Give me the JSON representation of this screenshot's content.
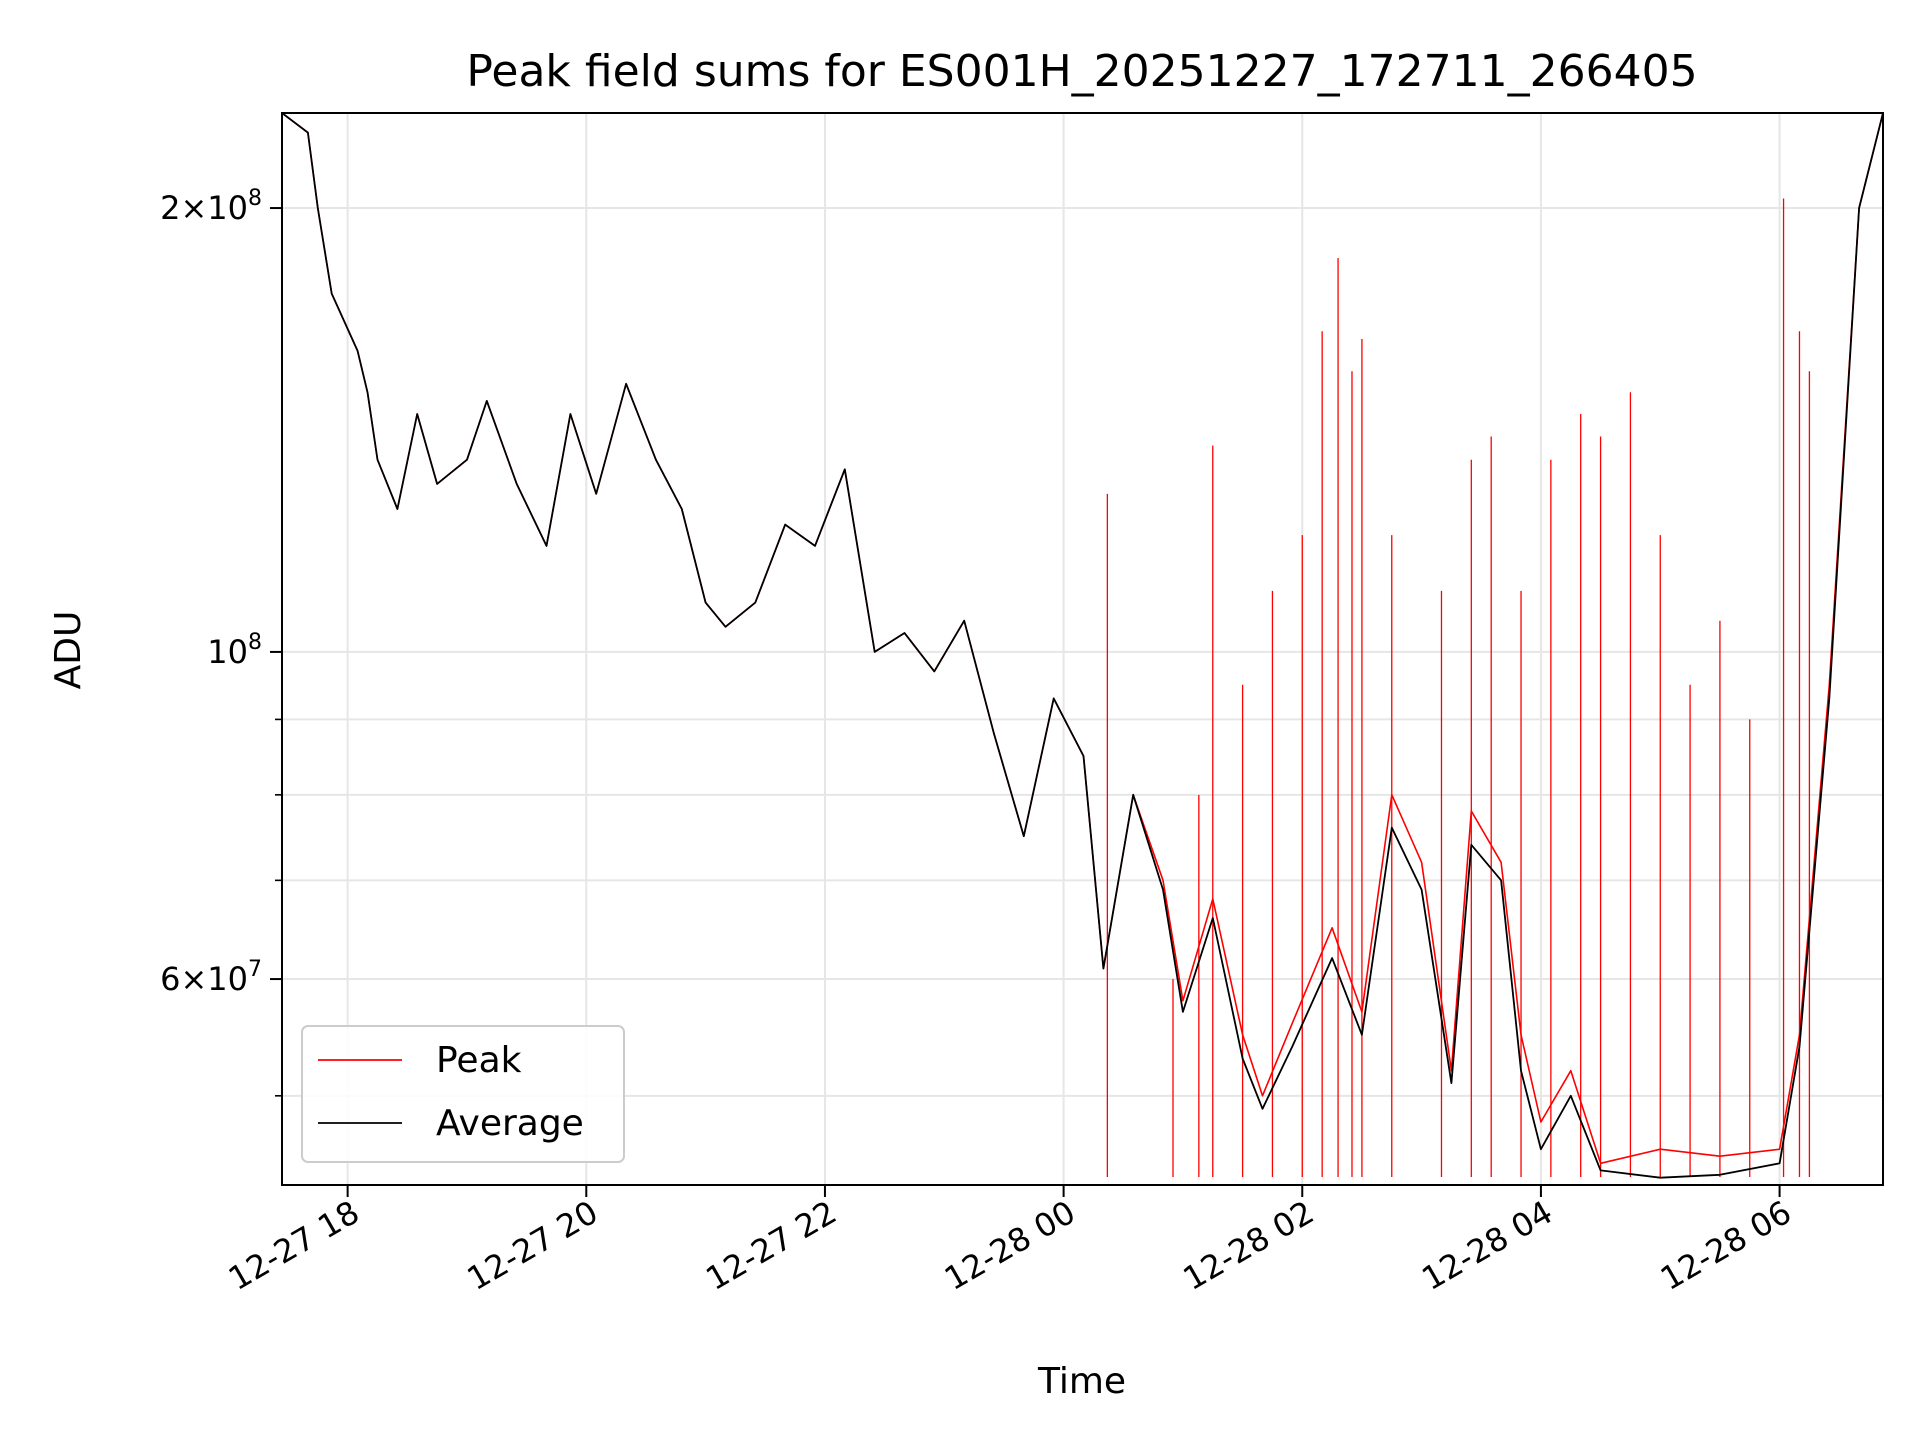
{
  "chart_data": {
    "type": "line",
    "title": "Peak field sums for ES001H_20251227_172711_266405",
    "xlabel": "Time",
    "ylabel": "ADU",
    "yscale": "log",
    "grid": true,
    "legend_position": "lower-left",
    "xlim": [
      "2025-12-27 17:27",
      "2025-12-28 06:52"
    ],
    "ylim": [
      43500000,
      232000000
    ],
    "x_ticks": [
      {
        "value": "2025-12-27 18:00",
        "label": "12-27 18"
      },
      {
        "value": "2025-12-27 20:00",
        "label": "12-27 20"
      },
      {
        "value": "2025-12-27 22:00",
        "label": "12-27 22"
      },
      {
        "value": "2025-12-28 00:00",
        "label": "12-28 00"
      },
      {
        "value": "2025-12-28 02:00",
        "label": "12-28 02"
      },
      {
        "value": "2025-12-28 04:00",
        "label": "12-28 04"
      },
      {
        "value": "2025-12-28 06:00",
        "label": "12-28 06"
      }
    ],
    "y_major_ticks": [
      {
        "value": 60000000,
        "mantissa": "6",
        "exponent": "7"
      },
      {
        "value": 100000000,
        "mantissa": "",
        "exponent": "8"
      },
      {
        "value": 200000000,
        "mantissa": "2",
        "exponent": "8"
      }
    ],
    "y_minor_ticks": [
      50000000,
      70000000,
      80000000,
      90000000
    ],
    "series": [
      {
        "name": "Peak",
        "color": "#ff0000",
        "points": [
          [
            "2025-12-27 17:27",
            232000000
          ],
          [
            "2025-12-27 17:40",
            225000000
          ],
          [
            "2025-12-27 17:45",
            200000000
          ],
          [
            "2025-12-27 17:52",
            175000000
          ],
          [
            "2025-12-27 18:05",
            160000000
          ],
          [
            "2025-12-27 18:10",
            150000000
          ],
          [
            "2025-12-27 18:15",
            135000000
          ],
          [
            "2025-12-27 18:25",
            125000000
          ],
          [
            "2025-12-27 18:35",
            145000000
          ],
          [
            "2025-12-27 18:45",
            130000000
          ],
          [
            "2025-12-27 19:00",
            135000000
          ],
          [
            "2025-12-27 19:10",
            148000000
          ],
          [
            "2025-12-27 19:25",
            130000000
          ],
          [
            "2025-12-27 19:40",
            118000000
          ],
          [
            "2025-12-27 19:52",
            145000000
          ],
          [
            "2025-12-27 20:05",
            128000000
          ],
          [
            "2025-12-27 20:20",
            152000000
          ],
          [
            "2025-12-27 20:35",
            135000000
          ],
          [
            "2025-12-27 20:48",
            125000000
          ],
          [
            "2025-12-27 21:00",
            108000000
          ],
          [
            "2025-12-27 21:10",
            104000000
          ],
          [
            "2025-12-27 21:25",
            108000000
          ],
          [
            "2025-12-27 21:40",
            122000000
          ],
          [
            "2025-12-27 21:55",
            118000000
          ],
          [
            "2025-12-27 22:10",
            133000000
          ],
          [
            "2025-12-27 22:25",
            100000000
          ],
          [
            "2025-12-27 22:40",
            103000000
          ],
          [
            "2025-12-27 22:55",
            97000000
          ],
          [
            "2025-12-27 23:10",
            105000000
          ],
          [
            "2025-12-27 23:25",
            88000000
          ],
          [
            "2025-12-27 23:40",
            75000000
          ],
          [
            "2025-12-27 23:55",
            93000000
          ],
          [
            "2025-12-28 00:10",
            85000000
          ],
          [
            "2025-12-28 00:20",
            61000000
          ],
          [
            "2025-12-28 00:35",
            80000000
          ],
          [
            "2025-12-28 00:50",
            70000000
          ],
          [
            "2025-12-28 01:00",
            58000000
          ],
          [
            "2025-12-28 01:15",
            68000000
          ],
          [
            "2025-12-28 01:30",
            55000000
          ],
          [
            "2025-12-28 01:40",
            50000000
          ],
          [
            "2025-12-28 01:55",
            56000000
          ],
          [
            "2025-12-28 02:15",
            65000000
          ],
          [
            "2025-12-28 02:30",
            57000000
          ],
          [
            "2025-12-28 02:45",
            80000000
          ],
          [
            "2025-12-28 03:00",
            72000000
          ],
          [
            "2025-12-28 03:15",
            52000000
          ],
          [
            "2025-12-28 03:25",
            78000000
          ],
          [
            "2025-12-28 03:40",
            72000000
          ],
          [
            "2025-12-28 03:50",
            55000000
          ],
          [
            "2025-12-28 04:00",
            48000000
          ],
          [
            "2025-12-28 04:15",
            52000000
          ],
          [
            "2025-12-28 04:30",
            45000000
          ],
          [
            "2025-12-28 05:00",
            46000000
          ],
          [
            "2025-12-28 05:30",
            45500000
          ],
          [
            "2025-12-28 06:00",
            46000000
          ],
          [
            "2025-12-28 06:10",
            55000000
          ],
          [
            "2025-12-28 06:25",
            95000000
          ],
          [
            "2025-12-28 06:40",
            200000000
          ],
          [
            "2025-12-28 06:52",
            232000000
          ]
        ],
        "spikes": [
          [
            "2025-12-28 00:22",
            128000000
          ],
          [
            "2025-12-28 00:55",
            60000000
          ],
          [
            "2025-12-28 01:08",
            80000000
          ],
          [
            "2025-12-28 01:15",
            138000000
          ],
          [
            "2025-12-28 01:30",
            95000000
          ],
          [
            "2025-12-28 01:45",
            110000000
          ],
          [
            "2025-12-28 02:00",
            120000000
          ],
          [
            "2025-12-28 02:10",
            165000000
          ],
          [
            "2025-12-28 02:18",
            185000000
          ],
          [
            "2025-12-28 02:25",
            155000000
          ],
          [
            "2025-12-28 02:30",
            163000000
          ],
          [
            "2025-12-28 02:45",
            120000000
          ],
          [
            "2025-12-28 03:10",
            110000000
          ],
          [
            "2025-12-28 03:25",
            135000000
          ],
          [
            "2025-12-28 03:35",
            140000000
          ],
          [
            "2025-12-28 03:50",
            110000000
          ],
          [
            "2025-12-28 04:05",
            135000000
          ],
          [
            "2025-12-28 04:20",
            145000000
          ],
          [
            "2025-12-28 04:30",
            140000000
          ],
          [
            "2025-12-28 04:45",
            150000000
          ],
          [
            "2025-12-28 05:00",
            120000000
          ],
          [
            "2025-12-28 05:15",
            95000000
          ],
          [
            "2025-12-28 05:30",
            105000000
          ],
          [
            "2025-12-28 05:45",
            90000000
          ],
          [
            "2025-12-28 06:02",
            203000000
          ],
          [
            "2025-12-28 06:10",
            165000000
          ],
          [
            "2025-12-28 06:15",
            155000000
          ]
        ]
      },
      {
        "name": "Average",
        "color": "#000000",
        "points": [
          [
            "2025-12-27 17:27",
            232000000
          ],
          [
            "2025-12-27 17:40",
            225000000
          ],
          [
            "2025-12-27 17:45",
            200000000
          ],
          [
            "2025-12-27 17:52",
            175000000
          ],
          [
            "2025-12-27 18:05",
            160000000
          ],
          [
            "2025-12-27 18:10",
            150000000
          ],
          [
            "2025-12-27 18:15",
            135000000
          ],
          [
            "2025-12-27 18:25",
            125000000
          ],
          [
            "2025-12-27 18:35",
            145000000
          ],
          [
            "2025-12-27 18:45",
            130000000
          ],
          [
            "2025-12-27 19:00",
            135000000
          ],
          [
            "2025-12-27 19:10",
            148000000
          ],
          [
            "2025-12-27 19:25",
            130000000
          ],
          [
            "2025-12-27 19:40",
            118000000
          ],
          [
            "2025-12-27 19:52",
            145000000
          ],
          [
            "2025-12-27 20:05",
            128000000
          ],
          [
            "2025-12-27 20:20",
            152000000
          ],
          [
            "2025-12-27 20:35",
            135000000
          ],
          [
            "2025-12-27 20:48",
            125000000
          ],
          [
            "2025-12-27 21:00",
            108000000
          ],
          [
            "2025-12-27 21:10",
            104000000
          ],
          [
            "2025-12-27 21:25",
            108000000
          ],
          [
            "2025-12-27 21:40",
            122000000
          ],
          [
            "2025-12-27 21:55",
            118000000
          ],
          [
            "2025-12-27 22:10",
            133000000
          ],
          [
            "2025-12-27 22:25",
            100000000
          ],
          [
            "2025-12-27 22:40",
            103000000
          ],
          [
            "2025-12-27 22:55",
            97000000
          ],
          [
            "2025-12-27 23:10",
            105000000
          ],
          [
            "2025-12-27 23:25",
            88000000
          ],
          [
            "2025-12-27 23:40",
            75000000
          ],
          [
            "2025-12-27 23:55",
            93000000
          ],
          [
            "2025-12-28 00:10",
            85000000
          ],
          [
            "2025-12-28 00:20",
            61000000
          ],
          [
            "2025-12-28 00:35",
            80000000
          ],
          [
            "2025-12-28 00:50",
            69000000
          ],
          [
            "2025-12-28 01:00",
            57000000
          ],
          [
            "2025-12-28 01:15",
            66000000
          ],
          [
            "2025-12-28 01:30",
            53000000
          ],
          [
            "2025-12-28 01:40",
            49000000
          ],
          [
            "2025-12-28 01:55",
            54000000
          ],
          [
            "2025-12-28 02:15",
            62000000
          ],
          [
            "2025-12-28 02:30",
            55000000
          ],
          [
            "2025-12-28 02:45",
            76000000
          ],
          [
            "2025-12-28 03:00",
            69000000
          ],
          [
            "2025-12-28 03:15",
            51000000
          ],
          [
            "2025-12-28 03:25",
            74000000
          ],
          [
            "2025-12-28 03:40",
            70000000
          ],
          [
            "2025-12-28 03:50",
            52000000
          ],
          [
            "2025-12-28 04:00",
            46000000
          ],
          [
            "2025-12-28 04:15",
            50000000
          ],
          [
            "2025-12-28 04:30",
            44500000
          ],
          [
            "2025-12-28 05:00",
            44000000
          ],
          [
            "2025-12-28 05:30",
            44200000
          ],
          [
            "2025-12-28 06:00",
            45000000
          ],
          [
            "2025-12-28 06:10",
            54000000
          ],
          [
            "2025-12-28 06:25",
            93000000
          ],
          [
            "2025-12-28 06:40",
            200000000
          ],
          [
            "2025-12-28 06:52",
            232000000
          ]
        ]
      }
    ]
  }
}
